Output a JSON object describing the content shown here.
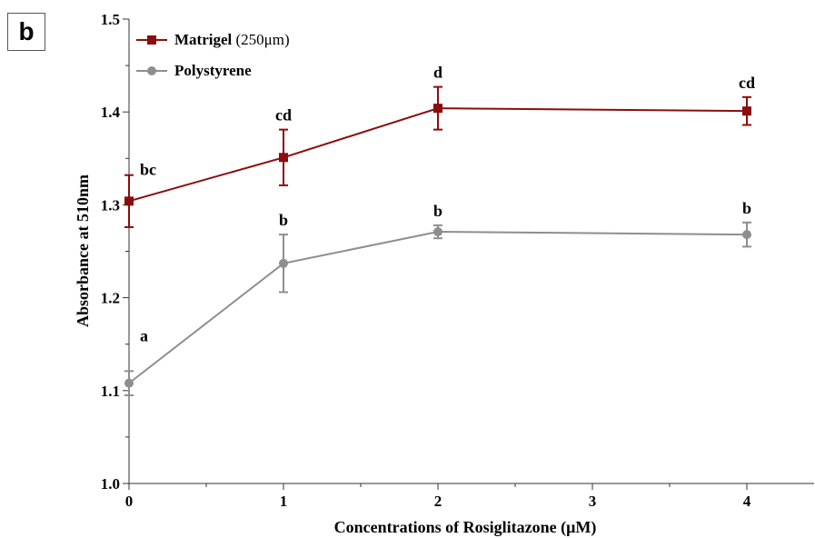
{
  "panel_label": "b",
  "colors": {
    "matrigel": "#8b0d0d",
    "polystyrene": "#8e8e8e",
    "axis": "#333333"
  },
  "legend": {
    "matrigel_name": "Matrigel",
    "matrigel_suffix": "(250μm)",
    "polystyrene_name": "Polystyrene"
  },
  "chart_data": {
    "type": "line",
    "xlabel": "Concentrations of Rosiglitazone (μM)",
    "ylabel": "Absorbance at 510nm",
    "xlim": [
      0,
      4.45
    ],
    "ylim": [
      1.0,
      1.5
    ],
    "x_ticks": [
      0,
      1,
      2,
      3,
      4
    ],
    "y_ticks": [
      1.0,
      1.1,
      1.2,
      1.3,
      1.4,
      1.5
    ],
    "grid": false,
    "legend_position": "top-left",
    "series": [
      {
        "name": "Matrigel (250μm)",
        "marker": "square",
        "color_key": "matrigel",
        "x": [
          0,
          1,
          2,
          4
        ],
        "y": [
          1.304,
          1.351,
          1.404,
          1.401
        ],
        "err": [
          0.028,
          0.03,
          0.023,
          0.015
        ],
        "labels": [
          "bc",
          "cd",
          "d",
          "cd"
        ]
      },
      {
        "name": "Polystyrene",
        "marker": "circle",
        "color_key": "polystyrene",
        "x": [
          0,
          1,
          2,
          4
        ],
        "y": [
          1.108,
          1.237,
          1.271,
          1.268
        ],
        "err": [
          0.013,
          0.031,
          0.007,
          0.013
        ],
        "labels": [
          "a",
          "b",
          "b",
          "b"
        ]
      }
    ]
  }
}
